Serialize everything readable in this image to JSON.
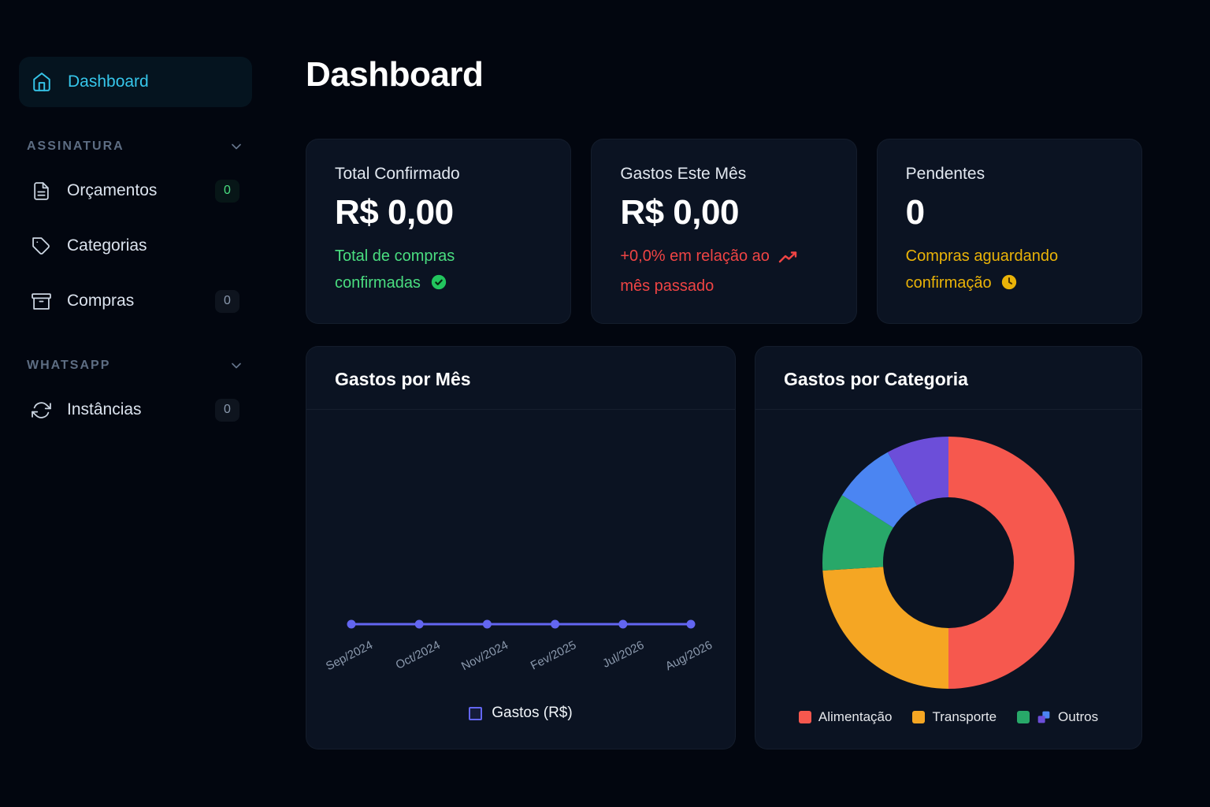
{
  "page": {
    "title": "Dashboard"
  },
  "colors": {
    "accent": "#36c6ea",
    "background": "#02060f",
    "card": "#0b1322",
    "green": "#4ade80",
    "red": "#ef4444",
    "yellow": "#eab308"
  },
  "sidebar": {
    "dashboard": {
      "label": "Dashboard"
    },
    "sections": [
      {
        "label": "ASSINATURA",
        "items": [
          {
            "label": "Orçamentos",
            "badge": "0"
          },
          {
            "label": "Categorias"
          },
          {
            "label": "Compras",
            "badge": "0"
          }
        ]
      },
      {
        "label": "WHATSAPP",
        "items": [
          {
            "label": "Instâncias",
            "badge": "0"
          }
        ]
      }
    ]
  },
  "stats": [
    {
      "title": "Total Confirmado",
      "value": "R$ 0,00",
      "subtitle": "Total de compras confirmadas",
      "status_color": "#4ade80"
    },
    {
      "title": "Gastos Este Mês",
      "value": "R$ 0,00",
      "subtitle_line1": "+0,0% em relação ao",
      "subtitle_line2": "mês passado",
      "status_color": "#ef4444"
    },
    {
      "title": "Pendentes",
      "value": "0",
      "subtitle": "Compras aguardando confirmação",
      "status_color": "#eab308"
    }
  ],
  "chart_data": [
    {
      "type": "line",
      "title": "Gastos por Mês",
      "x": [
        "Sep/2024",
        "Oct/2024",
        "Nov/2024",
        "Fev/2025",
        "Jul/2026",
        "Aug/2026"
      ],
      "series": [
        {
          "name": "Gastos (R$)",
          "values": [
            0,
            0,
            0,
            0,
            0,
            0
          ]
        }
      ],
      "line_color": "#6366f1",
      "ylim": [
        0,
        1
      ],
      "grid": false,
      "legend_position": "bottom"
    },
    {
      "type": "pie",
      "title": "Gastos por Categoria",
      "segments": [
        {
          "label": "Alimentação",
          "value": 50,
          "color": "#f6584e"
        },
        {
          "label": "Transporte",
          "value": 24,
          "color": "#f5a623"
        },
        {
          "label": "Outros",
          "value": 10,
          "color": "#28a869"
        },
        {
          "label": "",
          "value": 8,
          "color": "#4b85f2"
        },
        {
          "label": "",
          "value": 8,
          "color": "#6c4ed9"
        }
      ],
      "donut": true,
      "legend": [
        {
          "label": "Alimentação",
          "color": "#f6584e"
        },
        {
          "label": "Transporte",
          "color": "#f5a623"
        },
        {
          "label": "Outros",
          "color": "#28a869"
        }
      ],
      "legend_position": "bottom"
    }
  ]
}
